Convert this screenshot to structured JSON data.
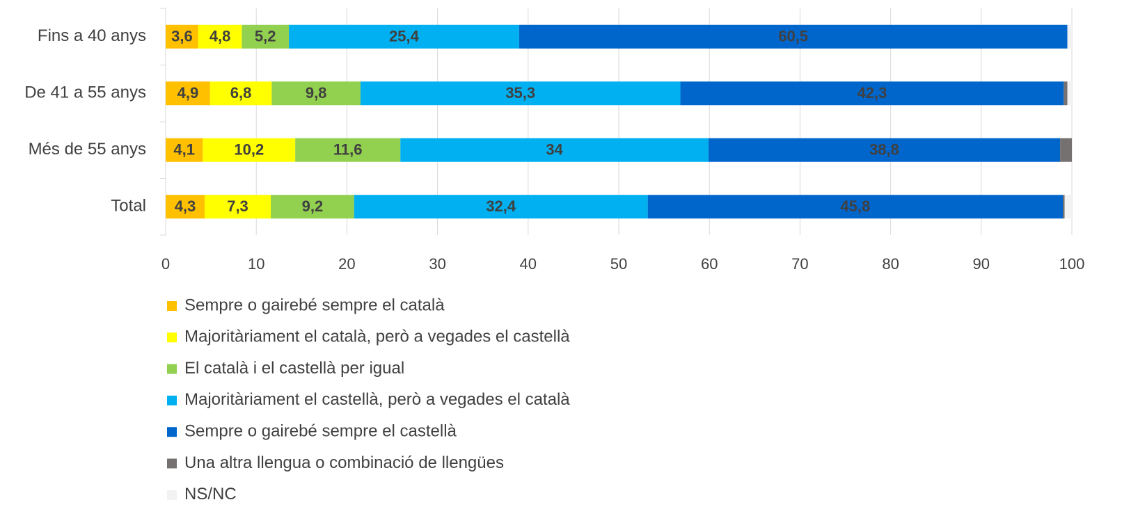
{
  "chart_data": {
    "type": "stacked_bar_horizontal",
    "categories": [
      "Fins a 40 anys",
      "De 41 a 55 anys",
      "Més de 55 anys",
      "Total"
    ],
    "series": [
      {
        "name": "Sempre o gairebé sempre el català",
        "color": "#FFC000",
        "values": [
          3.6,
          4.9,
          4.1,
          4.3
        ],
        "value_labels": [
          "3,6",
          "4,9",
          "4,1",
          "4,3"
        ]
      },
      {
        "name": "Majoritàriament el català, però a vegades el castellà",
        "color": "#FFFF00",
        "values": [
          4.8,
          6.8,
          10.2,
          7.3
        ],
        "value_labels": [
          "4,8",
          "6,8",
          "10,2",
          "7,3"
        ]
      },
      {
        "name": "El català i el castellà per igual",
        "color": "#92D050",
        "values": [
          5.2,
          9.8,
          11.6,
          9.2
        ],
        "value_labels": [
          "5,2",
          "9,8",
          "11,6",
          "9,2"
        ]
      },
      {
        "name": "Majoritàriament el castellà, però a vegades el català",
        "color": "#00B0F0",
        "values": [
          25.4,
          35.3,
          34,
          32.4
        ],
        "value_labels": [
          "25,4",
          "35,3",
          "34",
          "32,4"
        ]
      },
      {
        "name": "Sempre o gairebé sempre el castellà",
        "color": "#0066CC",
        "values": [
          60.5,
          42.3,
          38.8,
          45.8
        ],
        "value_labels": [
          "60,5",
          "42,3",
          "38,8",
          "45,8"
        ]
      },
      {
        "name": "Una altra llengua o combinació de llengües",
        "color": "#767171",
        "values": [
          0,
          0.4,
          1.3,
          0.2
        ]
      },
      {
        "name": "NS/NC",
        "color": "#F2F2F2",
        "values": [
          0.5,
          0.5,
          0,
          0.8
        ]
      }
    ],
    "xlim": [
      0,
      100
    ],
    "xticks": [
      0,
      10,
      20,
      30,
      40,
      50,
      60,
      70,
      80,
      90,
      100
    ],
    "grid": true,
    "legend": "bottom"
  }
}
